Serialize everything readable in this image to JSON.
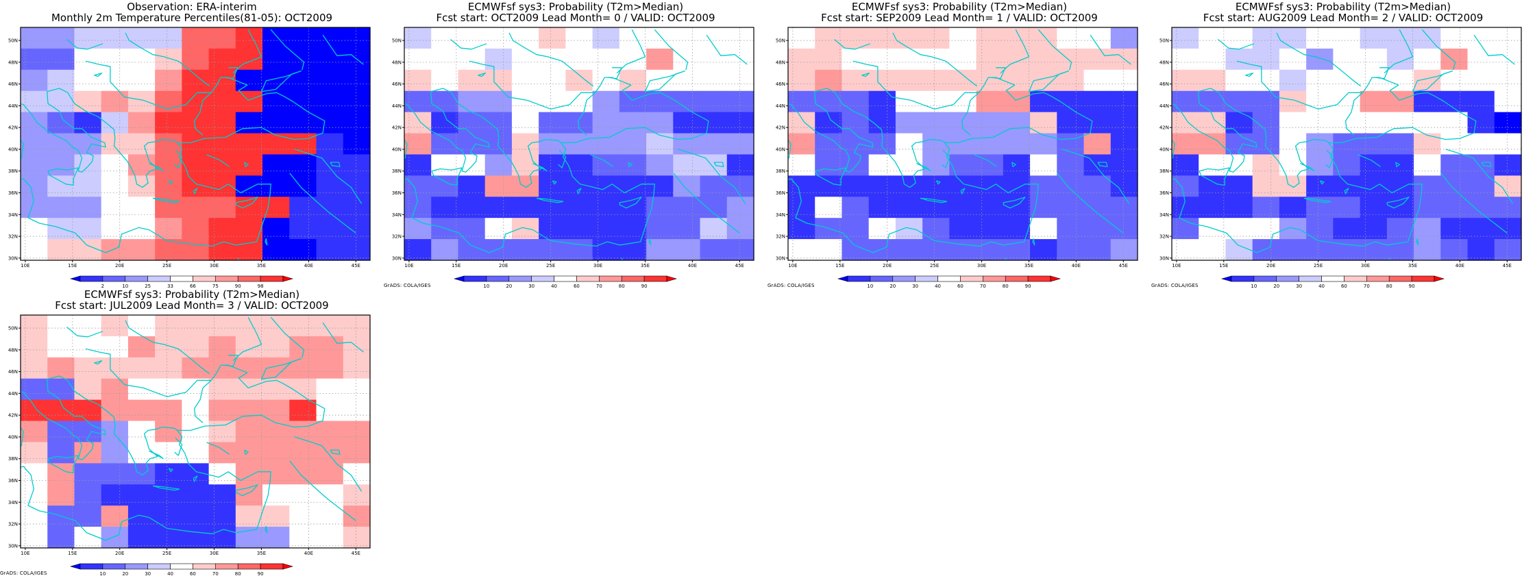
{
  "axes": {
    "lon_ticks": [
      "10E",
      "15E",
      "20E",
      "25E",
      "30E",
      "35E",
      "40E",
      "45E"
    ],
    "lat_ticks": [
      "30N",
      "32N",
      "34N",
      "36N",
      "38N",
      "40N",
      "42N",
      "44N",
      "46N",
      "48N",
      "50N"
    ],
    "lon_range": [
      9.5,
      46.5
    ],
    "lat_range": [
      29.8,
      51.2
    ]
  },
  "colors": {
    "coast": "#00cccc",
    "grid": "#9a9a9a",
    "scale": [
      "#0000ff",
      "#3333ff",
      "#6666ff",
      "#9999ff",
      "#ccccff",
      "#ffffff",
      "#ffcccc",
      "#ff9999",
      "#ff6666",
      "#ff3333",
      "#ff0000"
    ]
  },
  "credit": "GrADS: COLA/IGES",
  "panels": [
    {
      "title_line1": "Observation: ERA-interim",
      "title_line2": "Monthly 2m Temperature Percentiles(81-05): OCT2009",
      "colorbar_labels": [
        "2",
        "10",
        "25",
        "33",
        "66",
        "75",
        "90",
        "98"
      ],
      "show_credit": false,
      "grid": [
        "3344448890000",
        "2255568990000",
        "3455579900000",
        "4467689990000",
        "3214799900000",
        "3336689999910",
        "3345789990011",
        "3445689900011",
        "3335588899111",
        "5445578990111",
        "5667788990011"
      ]
    },
    {
      "title_line1": "ECMWFsf sys3: Probability (T2m>Median)",
      "title_line2": "Fcst start: OCT2009  Lead Month= 0 / VALID: OCT2009",
      "colorbar_labels": [
        "10",
        "20",
        "30",
        "40",
        "60",
        "70",
        "80",
        "90"
      ],
      "show_credit": true,
      "grid": [
        "4555565455555",
        "5554555557555",
        "6566556565555",
        "2233555322222",
        "6122522333111",
        "7222633334333",
        "1553611223441",
        "2217711111322",
        "2111111112223",
        "3225611112243",
        "1322222113322"
      ]
    },
    {
      "title_line1": "ECMWFsf sys3: Probability (T2m>Median)",
      "title_line2": "Fcst start: SEP2009  Lead Month= 1 / VALID: OCT2009",
      "colorbar_labels": [
        "10",
        "20",
        "30",
        "40",
        "60",
        "70",
        "80",
        "90"
      ],
      "show_credit": true,
      "grid": [
        "5666665666553",
        "6655555666666",
        "6766666666655",
        "2221555771111",
        "6121333336111",
        "7222533333271",
        "5225532215211",
        "1111111112221",
        "1521111112222",
        "1225421115222",
        "5522222221223"
      ]
    },
    {
      "title_line1": "ECMWFsf sys3: Probability (T2m>Median)",
      "title_line2": "Fcst start: AUG2009  Lead Month= 2 / VALID: OCT2009",
      "colorbar_labels": [
        "10",
        "20",
        "30",
        "40",
        "60",
        "70",
        "80",
        "90"
      ],
      "show_credit": true,
      "grid": [
        "4554455444555",
        "5544535545755",
        "6655455556555",
        "2222655771115",
        "6612555555510",
        "7722532226555",
        "1556532115221",
        "2116611112226",
        "1112122112222",
        "2555321123111",
        "5542222223212"
      ]
    },
    {
      "title_line1": "ECMWFsf sys3: Probability (T2m>Median)",
      "title_line2": "Fcst start: JUL2009  Lead Month= 3 / VALID: OCT2009",
      "colorbar_labels": [
        "10",
        "20",
        "30",
        "40",
        "60",
        "70",
        "80",
        "90"
      ],
      "show_credit": true,
      "grid": [
        "6556566666666",
        "6555766766776",
        "6766667777776",
        "2267555666655",
        "9997775777955",
        "7223575677777",
        "6273555777777",
        "5722211577775",
        "5721111175556",
        "5227111166557",
        "5253111133556"
      ]
    }
  ]
}
